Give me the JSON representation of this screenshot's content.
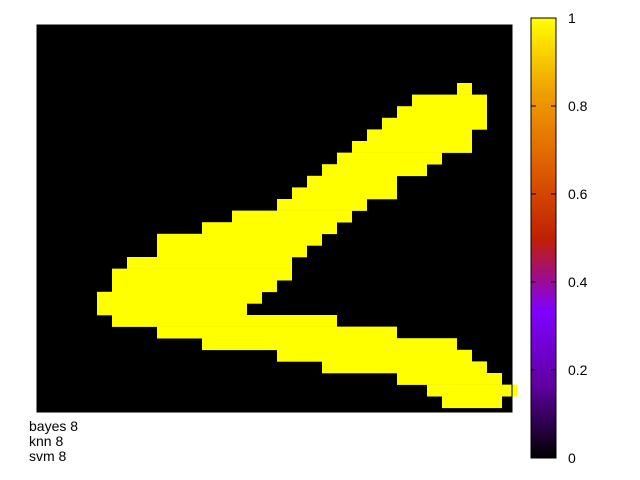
{
  "chart_data": {
    "type": "heatmap",
    "x_range": [
      0,
      32
    ],
    "y_range": [
      0,
      26
    ],
    "grid": false,
    "rows": [
      "00000000000000000000000000000000",
      "00000000000000000000000000000000",
      "00000000000000000000000000000000",
      "00000000000000000000000000000000",
      "00000000000000000000000000000000",
      "00000000000000000000000000001000",
      "00000000000000000000000001111100",
      "00000000000000000000000011111100",
      "00000000000000000000000111111100",
      "00000000000000000000001111111000",
      "00000000000000000000011111111000",
      "00000000000000000000111111100000",
      "00000000000000000001111111000000",
      "00000000000000000011111100000000",
      "00000000000000000111111100000000",
      "00000000000000001111110000000000",
      "00000000000001111111100000000000",
      "00000000000111111111000000000000",
      "00000000111111111110000000000000",
      "00000000111111111100000000000000",
      "00000011111111111000000000000000",
      "00000111111111111000000000000000",
      "00000111111111110000000000000000",
      "00001111111111100000000000000000",
      "00001111111111000000000000000000",
      "00000111111111111111000000000000",
      "00000000111111111111111100000000",
      "00000000000111111111111111110000",
      "00000000000000001111111111111000",
      "00000000000000000001111111111100",
      "00000000000000000000000011111110",
      "00000000000000000000000000111111",
      "00000000000000000000000000011110",
      "00000000000000000000000000000000",
      "00000000000000000000000000000000"
    ],
    "colorbar": {
      "min": 0,
      "max": 1,
      "ticks": [
        "0",
        "0.2",
        "0.4",
        "0.6",
        "0.8",
        "1"
      ],
      "palette": "black-purple-red-orange-yellow"
    }
  },
  "colors": {
    "high": "#ffff00",
    "low": "#000000",
    "palette_stops": [
      "#000000",
      "#6000a0",
      "#8000ff",
      "#c02000",
      "#e06000",
      "#f0a000",
      "#ffff00"
    ]
  },
  "captions": {
    "bayes": "bayes 8",
    "knn": "knn 8",
    "svm": "svm 8"
  }
}
